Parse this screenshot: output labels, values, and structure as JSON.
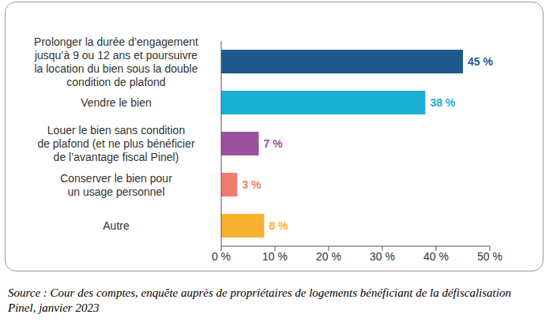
{
  "chart_data": {
    "type": "bar",
    "orientation": "horizontal",
    "categories": [
      "Prolonger la durée d’engagement\njusqu’à 9 ou 12 ans et poursuivre\nla location du bien sous la double\ncondition de plafond",
      "Vendre le bien",
      "Louer le bien sans condition\nde plafond (et ne plus bénéficier\nde l’avantage fiscal Pinel)",
      "Conserver le bien pour\nun usage personnel",
      "Autre"
    ],
    "values": [
      45,
      38,
      7,
      3,
      8
    ],
    "value_labels": [
      "45 %",
      "38 %",
      "7 %",
      "3 %",
      "8 %"
    ],
    "colors": [
      "#1f5a8e",
      "#1ab0d6",
      "#9a519e",
      "#ef7c6a",
      "#f6b130"
    ],
    "data_labels": true,
    "grid": false,
    "xlim": [
      0,
      50
    ],
    "xticks": [
      {
        "value": 0,
        "label": "0 %"
      },
      {
        "value": 10,
        "label": "10 %"
      },
      {
        "value": 20,
        "label": "20 %"
      },
      {
        "value": 30,
        "label": "30 %"
      },
      {
        "value": 40,
        "label": "40 %"
      },
      {
        "value": 50,
        "label": "50 %"
      }
    ],
    "source": "Source : Cour des comptes, enquête auprès de propriétaires de logements bénéficiant de la défiscalisation Pinel, janvier 2023"
  }
}
